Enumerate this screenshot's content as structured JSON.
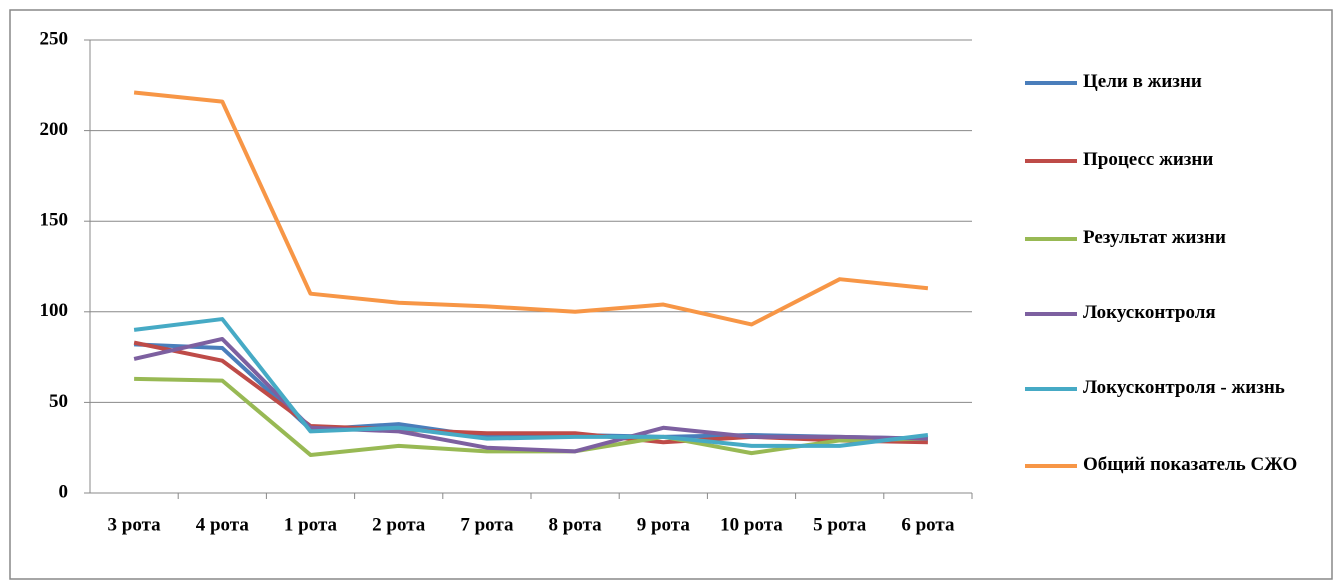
{
  "chart_data": {
    "type": "line",
    "categories": [
      "3 рота",
      "4 рота",
      "1 рота",
      "2 рота",
      "7 рота",
      "8 рота",
      "9 рота",
      "10 рота",
      "5 рота",
      "6 рота"
    ],
    "series": [
      {
        "name": "Цели в жизни",
        "color": "#4a7ebb",
        "values": [
          82,
          80,
          35,
          38,
          31,
          32,
          31,
          32,
          31,
          30
        ]
      },
      {
        "name": "Процесс жизни",
        "color": "#be4b48",
        "values": [
          83,
          73,
          37,
          35,
          33,
          33,
          28,
          31,
          29,
          28
        ]
      },
      {
        "name": "Результат жизни",
        "color": "#98b954",
        "values": [
          63,
          62,
          21,
          26,
          23,
          23,
          31,
          22,
          29,
          30
        ]
      },
      {
        "name": "Локусконтроля",
        "color": "#7d60a0",
        "values": [
          74,
          85,
          36,
          34,
          25,
          23,
          36,
          31,
          31,
          30
        ]
      },
      {
        "name": "Локусконтроля - жизнь",
        "color": "#46aac5",
        "values": [
          90,
          96,
          34,
          36,
          30,
          31,
          31,
          26,
          26,
          32
        ]
      },
      {
        "name": "Общий показатель СЖО",
        "color": "#f79646",
        "values": [
          221,
          216,
          110,
          105,
          103,
          100,
          104,
          93,
          118,
          113
        ]
      }
    ],
    "ylim": [
      0,
      250
    ],
    "yticks": [
      0,
      50,
      100,
      150,
      200,
      250
    ],
    "grid": true,
    "legend": "right"
  }
}
